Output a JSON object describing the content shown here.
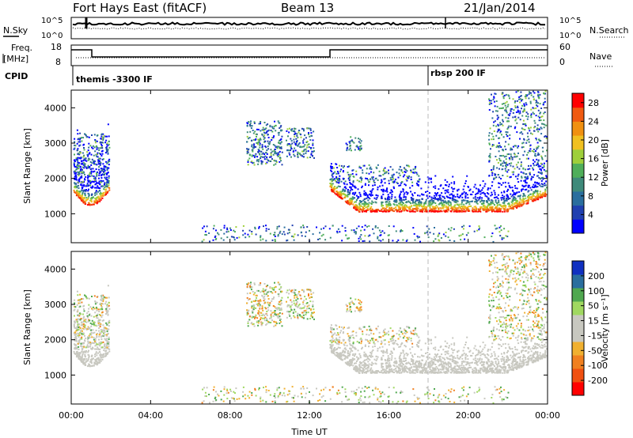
{
  "header": {
    "radar": "Fort Hays East (fitACF)",
    "beam": "Beam 13",
    "date": "21/Jan/2014"
  },
  "noise_panel": {
    "left_label": "N.Sky",
    "right_label": "N.Search",
    "left_ticks": [
      "10^5",
      "10^0"
    ],
    "right_ticks": [
      "10^5",
      "10^0"
    ]
  },
  "freq_panel": {
    "left_label_line1": "Freq.",
    "left_label_line2": "[MHz]",
    "right_label": "Nave",
    "left_ticks": [
      "18",
      "8"
    ],
    "right_ticks": [
      "60",
      "0"
    ]
  },
  "cpid_panel": {
    "label": "CPID",
    "programs": [
      "themis -3300 IF",
      "rbsp 200 IF"
    ]
  },
  "colors": {
    "power_scale": [
      "#0000ff",
      "#2040b0",
      "#2a6e9e",
      "#3e8a7a",
      "#4fae5a",
      "#9ecf3a",
      "#f0c020",
      "#f09010",
      "#f05a10",
      "#ff0000"
    ],
    "velocity_scale": [
      "#ff0000",
      "#f05010",
      "#f08020",
      "#f0b030",
      "#c8c8c0",
      "#c8c8c0",
      "#a0d860",
      "#50a850",
      "#2a6e9e",
      "#1030c0"
    ],
    "ground_scatter": "#c8c8c0"
  },
  "chart_data": [
    {
      "type": "heatmap",
      "name": "power",
      "x_ticks": [
        "00:00",
        "04:00",
        "08:00",
        "12:00",
        "16:00",
        "20:00",
        "00:00"
      ],
      "xlim_hours": [
        0,
        24
      ],
      "ylabel": "Slant Range [km]",
      "y_ticks": [
        1000,
        2000,
        3000,
        4000
      ],
      "ylim": [
        180,
        4500
      ],
      "colorbar_label": "Power [dB]",
      "colorbar_ticks": [
        4,
        8,
        12,
        16,
        20,
        24,
        28
      ],
      "colorbar_range": [
        0,
        30
      ],
      "marker_hour": 18
    },
    {
      "type": "heatmap",
      "name": "velocity",
      "x_ticks": [
        "00:00",
        "04:00",
        "08:00",
        "12:00",
        "16:00",
        "20:00",
        "00:00"
      ],
      "xlim_hours": [
        0,
        24
      ],
      "xlabel": "Time UT",
      "ylabel": "Slant Range [km]",
      "y_ticks": [
        1000,
        2000,
        3000,
        4000
      ],
      "ylim": [
        180,
        4500
      ],
      "colorbar_label": "Velocity [m s⁻¹]",
      "colorbar_ticks": [
        -200,
        -100,
        -50,
        -15,
        15,
        50,
        100,
        200
      ],
      "colorbar_range": [
        -250,
        250
      ],
      "marker_hour": 18
    }
  ]
}
